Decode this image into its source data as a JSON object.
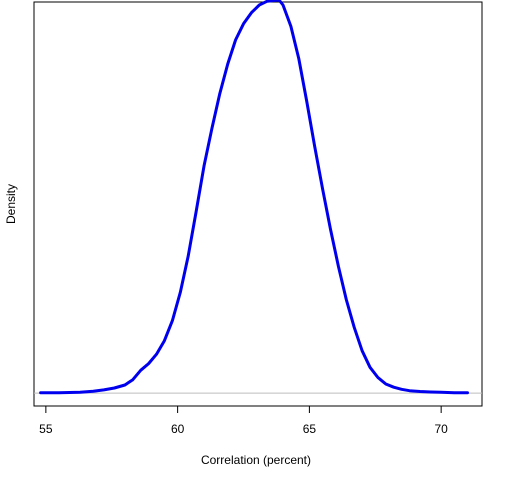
{
  "chart_data": {
    "type": "line",
    "title": "",
    "xlabel": "Correlation (percent)",
    "ylabel": "Density",
    "xlim": [
      54.55,
      71.55
    ],
    "ylim": [
      -0.0048,
      0.1456
    ],
    "x_ticks": [
      55,
      60,
      65,
      70
    ],
    "y_ticks_shown": false,
    "grid": false,
    "legend": "none",
    "baseline": {
      "y": 0,
      "color": "#bebebe"
    },
    "colors": {
      "line": "#0000ee",
      "frame": "#000000"
    },
    "series": [
      {
        "x": [
          54.8,
          55.5,
          56.3,
          56.8,
          57.2,
          57.6,
          58.0,
          58.3,
          58.6,
          58.9,
          59.2,
          59.5,
          59.8,
          60.1,
          60.4,
          60.7,
          61.0,
          61.3,
          61.6,
          61.9,
          62.2,
          62.5,
          62.8,
          63.1,
          63.4,
          63.7,
          63.85,
          64.0,
          64.3,
          64.6,
          64.9,
          65.2,
          65.5,
          65.8,
          66.1,
          66.4,
          66.7,
          67.0,
          67.3,
          67.6,
          67.9,
          68.2,
          68.5,
          68.8,
          69.2,
          69.6,
          70.0,
          70.5,
          71.0
        ],
        "y": [
          0.0001,
          0.0001,
          0.0003,
          0.0007,
          0.0012,
          0.0019,
          0.003,
          0.005,
          0.0085,
          0.011,
          0.0145,
          0.0195,
          0.027,
          0.0375,
          0.051,
          0.0675,
          0.0845,
          0.0985,
          0.1115,
          0.1225,
          0.1315,
          0.1375,
          0.1416,
          0.1445,
          0.1459,
          0.1462,
          0.1463,
          0.1445,
          0.1365,
          0.1245,
          0.1085,
          0.0918,
          0.076,
          0.061,
          0.0472,
          0.0348,
          0.0245,
          0.0158,
          0.0096,
          0.0058,
          0.0034,
          0.0022,
          0.0014,
          0.0009,
          0.0006,
          0.0004,
          0.0003,
          0.0001,
          0.0001
        ]
      }
    ]
  }
}
